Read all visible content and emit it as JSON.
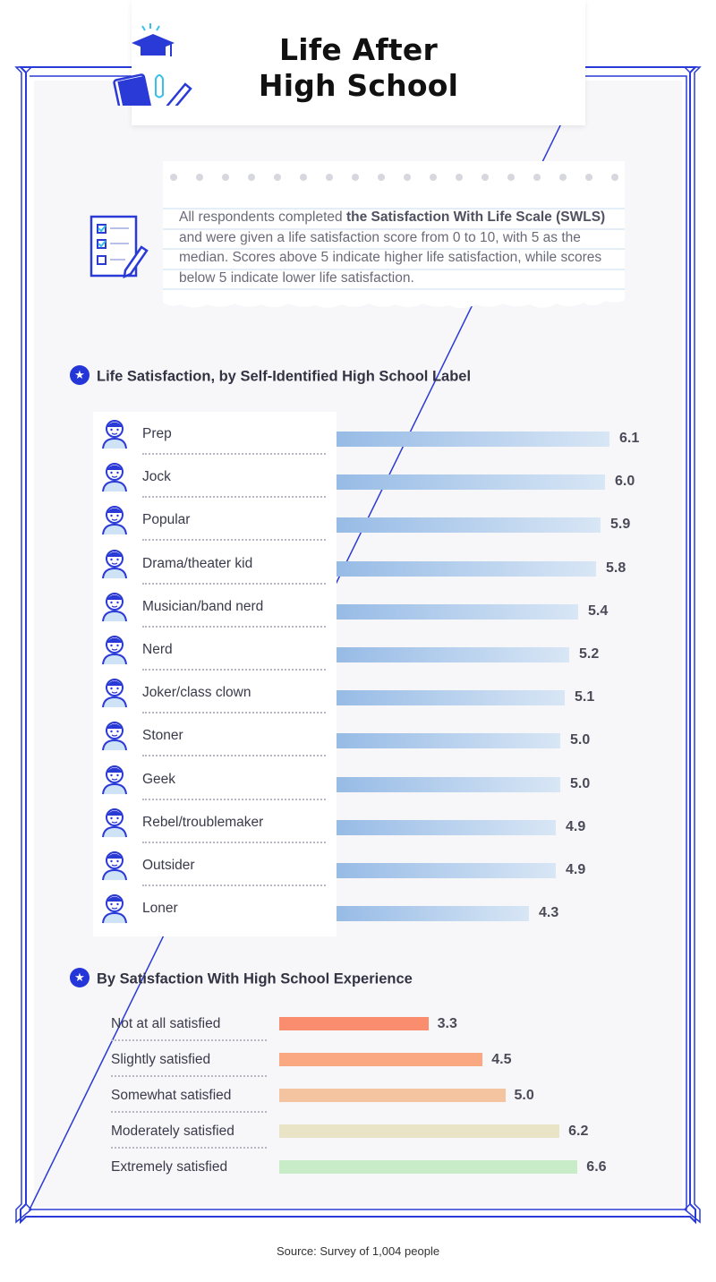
{
  "header": {
    "title_line1": "Life After",
    "title_line2": "High School"
  },
  "intro": {
    "pre": "All respondents completed ",
    "bold1": "the Satisfaction With Life Scale",
    "bold2": "(SWLS)",
    "post": " and were given a life satisfaction score from 0 to 10, with 5 as the median. Scores above 5 indicate higher life satisfaction, while scores below 5 indicate lower life satisfaction."
  },
  "section1_title": "Life Satisfaction, by Self-Identified High School Label",
  "section2_title": "By Satisfaction With High School Experience",
  "source": "Source: Survey of 1,004 people",
  "colors": {
    "frame": "#2a3ad6",
    "accent": "#2536d8",
    "bar_start": "#97bbe6",
    "bar_end": "#d8e6f5"
  },
  "chart_data": [
    {
      "type": "bar",
      "orientation": "horizontal",
      "title": "Life Satisfaction, by Self-Identified High School Label",
      "categories": [
        "Prep",
        "Jock",
        "Popular",
        "Drama/theater kid",
        "Musician/band nerd",
        "Nerd",
        "Joker/class clown",
        "Stoner",
        "Geek",
        "Rebel/troublemaker",
        "Outsider",
        "Loner"
      ],
      "values": [
        6.1,
        6.0,
        5.9,
        5.8,
        5.4,
        5.2,
        5.1,
        5.0,
        5.0,
        4.9,
        4.9,
        4.3
      ],
      "value_labels": [
        "6.1",
        "6.0",
        "5.9",
        "5.8",
        "5.4",
        "5.2",
        "5.1",
        "5.0",
        "5.0",
        "4.9",
        "4.9",
        "4.3"
      ],
      "xlim": [
        0,
        10
      ],
      "icons": [
        "prep-avatar-icon",
        "jock-avatar-icon",
        "popular-avatar-icon",
        "drama-avatar-icon",
        "musician-avatar-icon",
        "nerd-avatar-icon",
        "joker-avatar-icon",
        "stoner-avatar-icon",
        "geek-avatar-icon",
        "rebel-avatar-icon",
        "outsider-avatar-icon",
        "loner-avatar-icon"
      ]
    },
    {
      "type": "bar",
      "orientation": "horizontal",
      "title": "By Satisfaction With High School Experience",
      "categories": [
        "Not at all satisfied",
        "Slightly satisfied",
        "Somewhat satisfied",
        "Moderately satisfied",
        "Extremely satisfied"
      ],
      "values": [
        3.3,
        4.5,
        5.0,
        6.2,
        6.6
      ],
      "value_labels": [
        "3.3",
        "4.5",
        "5.0",
        "6.2",
        "6.6"
      ],
      "colors": [
        "#f98d6d",
        "#f9a882",
        "#f4c4a0",
        "#e9e4c6",
        "#c8ecc8"
      ],
      "xlim": [
        0,
        10
      ]
    }
  ]
}
